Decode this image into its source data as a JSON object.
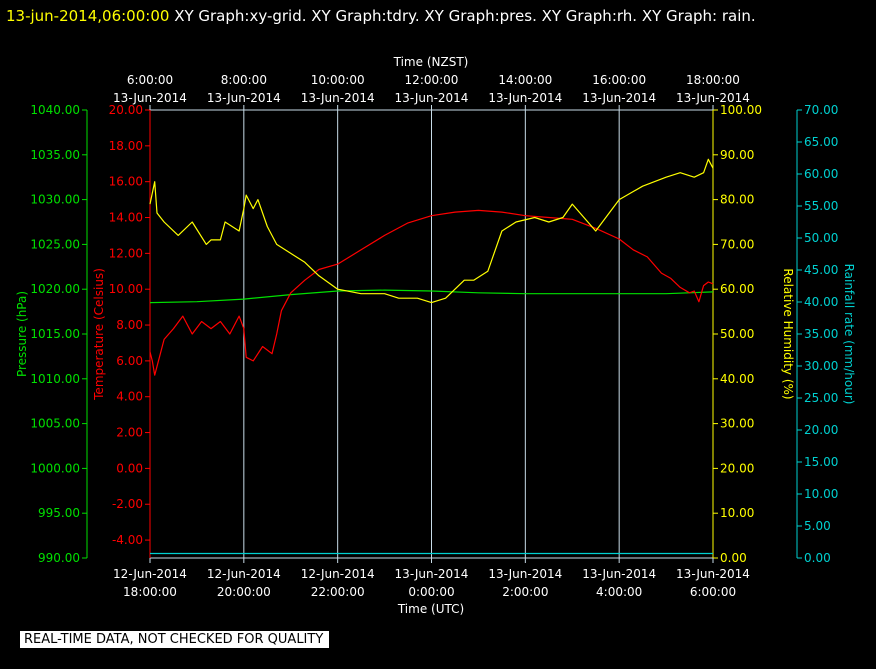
{
  "header": {
    "timestamp": "13-jun-2014,06:00:00",
    "titles": "XY Graph:xy-grid.  XY Graph:tdry.  XY Graph:pres.  XY Graph:rh.  XY Graph: rain."
  },
  "footer": {
    "banner": "REAL-TIME DATA, NOT CHECKED FOR QUALITY"
  },
  "colors": {
    "background": "#000000",
    "grid": "#c8dce8",
    "frame": "#c8dce8",
    "temperature": "#ff0000",
    "pressure": "#00e000",
    "humidity": "#ffff00",
    "rain": "#00d0d0"
  },
  "chart_data": {
    "type": "line",
    "top_axis": {
      "label": "Time (NZST)",
      "ticks": [
        {
          "time": "6:00:00",
          "date": "13-Jun-2014"
        },
        {
          "time": "8:00:00",
          "date": "13-Jun-2014"
        },
        {
          "time": "10:00:00",
          "date": "13-Jun-2014"
        },
        {
          "time": "12:00:00",
          "date": "13-Jun-2014"
        },
        {
          "time": "14:00:00",
          "date": "13-Jun-2014"
        },
        {
          "time": "16:00:00",
          "date": "13-Jun-2014"
        },
        {
          "time": "18:00:00",
          "date": "13-Jun-2014"
        }
      ]
    },
    "bottom_axis": {
      "label": "Time (UTC)",
      "ticks": [
        {
          "date": "12-Jun-2014",
          "time": "18:00:00"
        },
        {
          "date": "12-Jun-2014",
          "time": "20:00:00"
        },
        {
          "date": "12-Jun-2014",
          "time": "22:00:00"
        },
        {
          "date": "13-Jun-2014",
          "time": "0:00:00"
        },
        {
          "date": "13-Jun-2014",
          "time": "2:00:00"
        },
        {
          "date": "13-Jun-2014",
          "time": "4:00:00"
        },
        {
          "date": "13-Jun-2014",
          "time": "6:00:00"
        }
      ]
    },
    "x_range_hours": [
      0,
      12
    ],
    "axes": {
      "pressure": {
        "label": "Pressure (hPa)",
        "min": 990,
        "max": 1040,
        "ticks": [
          "990.00",
          "995.00",
          "1000.00",
          "1005.00",
          "1010.00",
          "1015.00",
          "1020.00",
          "1025.00",
          "1030.00",
          "1035.00",
          "1040.00"
        ]
      },
      "temperature": {
        "label": "Temperature (Celsius)",
        "min": -5,
        "max": 20,
        "ticks": [
          "-4.00",
          "-2.00",
          "0.00",
          "2.00",
          "4.00",
          "6.00",
          "8.00",
          "10.00",
          "12.00",
          "14.00",
          "16.00",
          "18.00",
          "20.00"
        ]
      },
      "humidity": {
        "label": "Relative Humidity (%)",
        "min": 0,
        "max": 100,
        "ticks": [
          "0.00",
          "10.00",
          "20.00",
          "30.00",
          "40.00",
          "50.00",
          "60.00",
          "70.00",
          "80.00",
          "90.00",
          "100.00"
        ]
      },
      "rain": {
        "label": "Rainfall rate (mm/hour)",
        "min": 0,
        "max": 70,
        "ticks": [
          "0.00",
          "5.00",
          "10.00",
          "15.00",
          "20.00",
          "25.00",
          "30.00",
          "35.00",
          "40.00",
          "45.00",
          "50.00",
          "55.00",
          "60.00",
          "65.00",
          "70.00"
        ]
      }
    },
    "series": [
      {
        "key": "temperature",
        "x": [
          0,
          0.05,
          0.1,
          0.2,
          0.3,
          0.5,
          0.7,
          0.9,
          1.1,
          1.3,
          1.5,
          1.7,
          1.9,
          2.0,
          2.05,
          2.2,
          2.4,
          2.6,
          2.7,
          2.8,
          3,
          3.3,
          3.6,
          4,
          4.5,
          5,
          5.5,
          6,
          6.5,
          7,
          7.5,
          8,
          8.5,
          9,
          9.5,
          10,
          10.3,
          10.6,
          10.9,
          11.1,
          11.3,
          11.5,
          11.6,
          11.7,
          11.8,
          11.9,
          12
        ],
        "y": [
          6.5,
          6.0,
          5.2,
          6.2,
          7.2,
          7.8,
          8.5,
          7.5,
          8.2,
          7.8,
          8.2,
          7.5,
          8.5,
          7.8,
          6.2,
          6.0,
          6.8,
          6.4,
          7.5,
          8.8,
          9.8,
          10.5,
          11.1,
          11.4,
          12.2,
          13.0,
          13.7,
          14.1,
          14.3,
          14.4,
          14.3,
          14.1,
          14.0,
          13.9,
          13.4,
          12.8,
          12.2,
          11.8,
          10.9,
          10.6,
          10.1,
          9.8,
          9.9,
          9.3,
          10.2,
          10.4,
          10.3
        ]
      },
      {
        "key": "pressure",
        "x": [
          0,
          1,
          2,
          3,
          4,
          5,
          6,
          7,
          8,
          9,
          10,
          11,
          12
        ],
        "y": [
          1018.5,
          1018.6,
          1018.9,
          1019.4,
          1019.8,
          1019.9,
          1019.8,
          1019.6,
          1019.5,
          1019.5,
          1019.5,
          1019.5,
          1019.7
        ]
      },
      {
        "key": "humidity",
        "x": [
          0,
          0.1,
          0.15,
          0.3,
          0.6,
          0.9,
          1.2,
          1.3,
          1.5,
          1.6,
          1.9,
          2.0,
          2.05,
          2.2,
          2.3,
          2.5,
          2.7,
          3,
          3.3,
          3.6,
          4,
          4.5,
          5,
          5.3,
          5.7,
          6,
          6.3,
          6.7,
          6.9,
          7.2,
          7.5,
          7.8,
          8.2,
          8.5,
          8.8,
          9,
          9.5,
          10,
          10.5,
          11,
          11.3,
          11.6,
          11.8,
          11.9,
          12
        ],
        "y": [
          79,
          84,
          77,
          75,
          72,
          75,
          70,
          71,
          71,
          75,
          73,
          78,
          81,
          78,
          80,
          74,
          70,
          68,
          66,
          63,
          60,
          59,
          59,
          58,
          58,
          57,
          58,
          62,
          62,
          64,
          73,
          75,
          76,
          75,
          76,
          79,
          73,
          80,
          83,
          85,
          86,
          85,
          86,
          89,
          87
        ]
      },
      {
        "key": "rain",
        "x": [
          0,
          12
        ],
        "y": [
          0.7,
          0.7
        ]
      }
    ]
  }
}
